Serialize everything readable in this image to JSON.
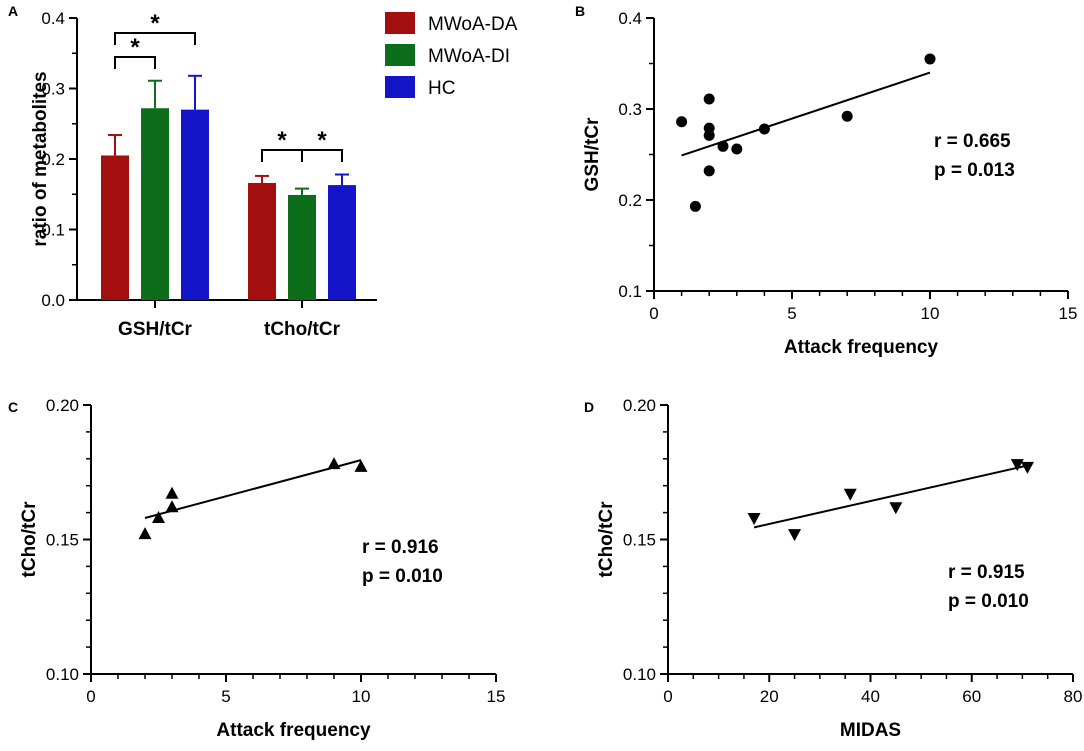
{
  "chart_data": [
    {
      "panel": "A",
      "type": "bar",
      "categories": [
        "GSH/tCr",
        "tCho/tCr"
      ],
      "series": [
        {
          "name": "MWoA-DA",
          "color": "#a30f0f",
          "values": [
            0.205,
            0.166
          ],
          "errors": [
            0.029,
            0.01
          ]
        },
        {
          "name": "MWoA-DI",
          "color": "#0c6e1a",
          "values": [
            0.272,
            0.149
          ],
          "errors": [
            0.039,
            0.009
          ]
        },
        {
          "name": "HC",
          "color": "#1414c8",
          "values": [
            0.27,
            0.163
          ],
          "errors": [
            0.048,
            0.015
          ]
        }
      ],
      "ylabel": "ratio of metabolites",
      "xlabel": "",
      "ylim": [
        0,
        0.4
      ],
      "yticks": [
        "0.0",
        "0.1",
        "0.2",
        "0.3",
        "0.4"
      ],
      "significance": [
        {
          "label": "*",
          "group": 0,
          "from": 0,
          "to": 1
        },
        {
          "label": "*",
          "group": 0,
          "from": 0,
          "to": 2
        },
        {
          "label": "*",
          "group": 1,
          "from": 0,
          "to": 1
        },
        {
          "label": "*",
          "group": 1,
          "from": 1,
          "to": 2
        }
      ],
      "legend": "top-right"
    },
    {
      "panel": "B",
      "type": "scatter",
      "marker": "circle",
      "x": [
        1,
        1.5,
        2,
        2,
        2,
        2,
        2.5,
        3,
        4,
        7,
        10
      ],
      "y": [
        0.286,
        0.193,
        0.311,
        0.279,
        0.271,
        0.232,
        0.259,
        0.256,
        0.278,
        0.292,
        0.355
      ],
      "fit_line": {
        "x": [
          1,
          10
        ],
        "y": [
          0.249,
          0.34
        ]
      },
      "xlabel": "Attack frequency",
      "ylabel": "GSH/tCr",
      "xlim": [
        0,
        15
      ],
      "ylim": [
        0.1,
        0.4
      ],
      "xticks": [
        "0",
        "5",
        "10",
        "15"
      ],
      "yticks": [
        "0.1",
        "0.2",
        "0.3",
        "0.4"
      ],
      "r_text": "r = 0.665",
      "p_text": "p = 0.013"
    },
    {
      "panel": "C",
      "type": "scatter",
      "marker": "triangle-up",
      "x": [
        2,
        2.5,
        3,
        3,
        9,
        10
      ],
      "y": [
        0.152,
        0.158,
        0.167,
        0.162,
        0.178,
        0.177
      ],
      "fit_line": {
        "x": [
          2,
          10
        ],
        "y": [
          0.158,
          0.1795
        ]
      },
      "xlabel": "Attack frequency",
      "ylabel": "tCho/tCr",
      "xlim": [
        0,
        15
      ],
      "ylim": [
        0.1,
        0.2
      ],
      "xticks": [
        "0",
        "5",
        "10",
        "15"
      ],
      "yticks": [
        "0.10",
        "0.15",
        "0.20"
      ],
      "r_text": "r = 0.916",
      "p_text": "p = 0.010"
    },
    {
      "panel": "D",
      "type": "scatter",
      "marker": "triangle-down",
      "x": [
        17,
        25,
        36,
        45,
        69,
        71
      ],
      "y": [
        0.158,
        0.152,
        0.167,
        0.162,
        0.178,
        0.177
      ],
      "fit_line": {
        "x": [
          17,
          71
        ],
        "y": [
          0.1545,
          0.1775
        ]
      },
      "xlabel": "MIDAS",
      "ylabel": "tCho/tCr",
      "xlim": [
        0,
        80
      ],
      "ylim": [
        0.1,
        0.2
      ],
      "xticks": [
        "0",
        "20",
        "40",
        "60",
        "80"
      ],
      "yticks": [
        "0.10",
        "0.15",
        "0.20"
      ],
      "r_text": "r = 0.915",
      "p_text": "p = 0.010"
    }
  ]
}
